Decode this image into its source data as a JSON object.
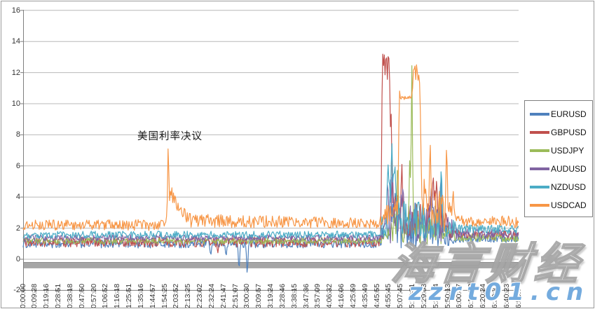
{
  "watermarks": {
    "site_name": "海言财经",
    "site_url": "zzrt01.cn",
    "url_color": "#74abde"
  },
  "chart_data": {
    "type": "line",
    "title": "",
    "xlabel": "",
    "ylabel": "",
    "ylim": [
      -2,
      16
    ],
    "grid": "horizontal-gridlines",
    "legend_position": "right",
    "y_ticks": [
      16,
      14,
      12,
      10,
      8,
      6,
      4,
      2,
      0,
      -2
    ],
    "x_labels": [
      "0:00:00",
      "0:09:28",
      "0:19:16",
      "0:28:51",
      "0:38:18",
      "0:47:50",
      "0:57:20",
      "1:06:52",
      "1:16:18",
      "1:25:51",
      "1:35:16",
      "1:44:57",
      "1:54:25",
      "2:03:52",
      "2:13:25",
      "2:23:02",
      "2:32:24",
      "2:41:47",
      "2:51:07",
      "3:00:30",
      "3:09:57",
      "3:19:24",
      "3:28:46",
      "3:38:15",
      "3:47:36",
      "3:57:09",
      "4:06:32",
      "4:16:06",
      "4:25:59",
      "4:35:49",
      "4:45:55",
      "4:55:45",
      "5:07:45",
      "5:18:21",
      "5:29:53",
      "5:39:34",
      "5:50:13",
      "6:00:37",
      "6:10:22",
      "6:20:24",
      "6:30:22",
      "6:40:23",
      "6:50:09"
    ],
    "annotation": {
      "text": "美国利率决议",
      "x_index": 12.3,
      "y_value": 8.8
    },
    "zero_bar": {
      "from": -0.18,
      "to": -0.58,
      "color": "#a6a6a6",
      "edge": "#8f8f8f"
    },
    "axis_color": "#7f7f7f",
    "gridline_color": "#b9b9b9",
    "series": [
      {
        "name": "EURUSD",
        "color": "#4F81BD",
        "mid": [
          [
            0,
            1.0
          ],
          [
            30,
            1.0
          ],
          [
            30.5,
            1.7
          ],
          [
            31,
            2.4
          ],
          [
            31.6,
            2.1
          ],
          [
            32.5,
            1.9
          ],
          [
            34,
            1.7
          ],
          [
            35.5,
            1.7
          ],
          [
            36.5,
            1.4
          ],
          [
            37,
            1.35
          ],
          [
            42,
            1.35
          ]
        ],
        "noise": [
          [
            0,
            0.28
          ],
          [
            30,
            0.28
          ],
          [
            30.5,
            0.9
          ],
          [
            31,
            1.5
          ],
          [
            32,
            1.3
          ],
          [
            33,
            1.1
          ],
          [
            34,
            1.0
          ],
          [
            35.5,
            1.0
          ],
          [
            36.5,
            0.4
          ],
          [
            37,
            0.27
          ],
          [
            42,
            0.27
          ]
        ],
        "spikes": [
          [
            15.9,
            0.15
          ],
          [
            17.2,
            0.1
          ],
          [
            18.3,
            -0.9
          ],
          [
            19.0,
            -1.2
          ],
          [
            31.15,
            5.5
          ],
          [
            31.55,
            4.8
          ],
          [
            35.4,
            6.0
          ]
        ]
      },
      {
        "name": "GBPUSD",
        "color": "#C0504D",
        "mid": [
          [
            0,
            1.1
          ],
          [
            30.3,
            1.1
          ],
          [
            30.45,
            11.0
          ],
          [
            31.1,
            11.0
          ],
          [
            31.3,
            4.0
          ],
          [
            31.8,
            3.0
          ],
          [
            32.5,
            2.5
          ],
          [
            34.4,
            2.6
          ],
          [
            34.9,
            3.2
          ],
          [
            35.4,
            2.4
          ],
          [
            36.2,
            1.9
          ],
          [
            37,
            1.6
          ],
          [
            42,
            1.55
          ]
        ],
        "noise": [
          [
            0,
            0.32
          ],
          [
            30.3,
            0.32
          ],
          [
            30.45,
            2.4
          ],
          [
            31.1,
            2.4
          ],
          [
            31.35,
            1.6
          ],
          [
            32,
            1.2
          ],
          [
            33,
            1.1
          ],
          [
            34.4,
            1.3
          ],
          [
            35.2,
            1.3
          ],
          [
            36.2,
            0.7
          ],
          [
            37,
            0.3
          ],
          [
            42,
            0.3
          ]
        ],
        "spikes": [
          [
            16.5,
            0.35
          ],
          [
            30.5,
            13.5
          ],
          [
            30.62,
            12.7
          ],
          [
            30.78,
            13.6
          ],
          [
            30.97,
            13.7
          ],
          [
            32.1,
            6.4
          ],
          [
            34.75,
            5.8
          ],
          [
            35.05,
            5.3
          ]
        ]
      },
      {
        "name": "USDJPY",
        "color": "#9BBB59",
        "mid": [
          [
            0,
            1.18
          ],
          [
            30.4,
            1.18
          ],
          [
            30.8,
            1.8
          ],
          [
            31.5,
            2.2
          ],
          [
            33,
            2.0
          ],
          [
            34,
            1.8
          ],
          [
            35.5,
            1.7
          ],
          [
            36.5,
            1.5
          ],
          [
            37,
            1.4
          ],
          [
            42,
            1.35
          ]
        ],
        "noise": [
          [
            0,
            0.2
          ],
          [
            30.4,
            0.2
          ],
          [
            30.8,
            0.7
          ],
          [
            31.5,
            1.1
          ],
          [
            33,
            1.0
          ],
          [
            34,
            0.85
          ],
          [
            35.5,
            0.8
          ],
          [
            36.5,
            0.4
          ],
          [
            37,
            0.25
          ],
          [
            42,
            0.25
          ]
        ],
        "spikes": [
          [
            31.75,
            6.9
          ],
          [
            32.78,
            7.2
          ],
          [
            32.95,
            12.9
          ],
          [
            35.3,
            3.8
          ]
        ]
      },
      {
        "name": "AUDUSD",
        "color": "#8064A2",
        "mid": [
          [
            0,
            1.38
          ],
          [
            30.4,
            1.38
          ],
          [
            30.8,
            2.3
          ],
          [
            31.3,
            2.8
          ],
          [
            33,
            2.5
          ],
          [
            34.5,
            2.3
          ],
          [
            35.5,
            2.2
          ],
          [
            36.3,
            1.9
          ],
          [
            37,
            1.65
          ],
          [
            42,
            1.6
          ]
        ],
        "noise": [
          [
            0,
            0.2
          ],
          [
            30.4,
            0.2
          ],
          [
            30.8,
            1.3
          ],
          [
            31.3,
            1.8
          ],
          [
            33,
            1.4
          ],
          [
            34.5,
            1.2
          ],
          [
            35.5,
            1.2
          ],
          [
            36.3,
            0.8
          ],
          [
            37,
            0.3
          ],
          [
            42,
            0.3
          ]
        ],
        "spikes": [
          [
            30.9,
            5.4
          ],
          [
            31.3,
            6.3
          ],
          [
            32.2,
            5.0
          ],
          [
            34.6,
            5.0
          ]
        ]
      },
      {
        "name": "NZDUSD",
        "color": "#4BACC6",
        "mid": [
          [
            0,
            1.58
          ],
          [
            30.3,
            1.58
          ],
          [
            30.5,
            2.4
          ],
          [
            30.9,
            3.5
          ],
          [
            31.6,
            3.4
          ],
          [
            32.2,
            2.8
          ],
          [
            33.5,
            2.6
          ],
          [
            34.5,
            2.4
          ],
          [
            35.5,
            2.3
          ],
          [
            36.4,
            2.1
          ],
          [
            37,
            1.95
          ],
          [
            42,
            1.9
          ]
        ],
        "noise": [
          [
            0,
            0.24
          ],
          [
            30.3,
            0.24
          ],
          [
            30.5,
            1.2
          ],
          [
            30.9,
            2.1
          ],
          [
            31.6,
            2.1
          ],
          [
            32.2,
            1.5
          ],
          [
            33.5,
            1.2
          ],
          [
            34.5,
            1.1
          ],
          [
            35.5,
            1.1
          ],
          [
            36.4,
            0.7
          ],
          [
            37,
            0.3
          ],
          [
            42,
            0.3
          ]
        ],
        "spikes": [
          [
            30.95,
            6.3
          ],
          [
            31.25,
            8.0
          ],
          [
            31.5,
            6.6
          ],
          [
            35.45,
            6.5
          ]
        ]
      },
      {
        "name": "USDCAD",
        "color": "#F79646",
        "mid": [
          [
            0,
            2.2
          ],
          [
            12.1,
            2.2
          ],
          [
            12.45,
            3.9
          ],
          [
            12.9,
            3.9
          ],
          [
            13.5,
            3.0
          ],
          [
            14.2,
            2.5
          ],
          [
            30.2,
            2.3
          ],
          [
            30.6,
            2.7
          ],
          [
            31.1,
            3.0
          ],
          [
            31.75,
            3.3
          ],
          [
            31.95,
            10.38
          ],
          [
            32.95,
            10.38
          ],
          [
            33.08,
            12.0
          ],
          [
            33.6,
            12.0
          ],
          [
            33.78,
            4.5
          ],
          [
            34.2,
            3.1
          ],
          [
            34.9,
            3.6
          ],
          [
            35.6,
            3.2
          ],
          [
            36.4,
            2.7
          ],
          [
            37,
            2.5
          ],
          [
            42,
            2.4
          ]
        ],
        "noise": [
          [
            0,
            0.32
          ],
          [
            12.1,
            0.36
          ],
          [
            12.6,
            0.7
          ],
          [
            13.6,
            0.45
          ],
          [
            30.2,
            0.32
          ],
          [
            31,
            0.8
          ],
          [
            31.85,
            0.45
          ],
          [
            31.98,
            0.12
          ],
          [
            32.9,
            0.12
          ],
          [
            33.1,
            0.55
          ],
          [
            33.6,
            0.55
          ],
          [
            33.85,
            1.5
          ],
          [
            34.6,
            1.6
          ],
          [
            35.6,
            1.5
          ],
          [
            36.4,
            0.6
          ],
          [
            37,
            0.36
          ],
          [
            42,
            0.36
          ]
        ],
        "spikes": [
          [
            12.3,
            7.8,
            0.1
          ],
          [
            31.9,
            11.2,
            0.08
          ],
          [
            34.5,
            7.9
          ],
          [
            35.9,
            7.8
          ],
          [
            36.45,
            4.6
          ]
        ]
      }
    ]
  }
}
